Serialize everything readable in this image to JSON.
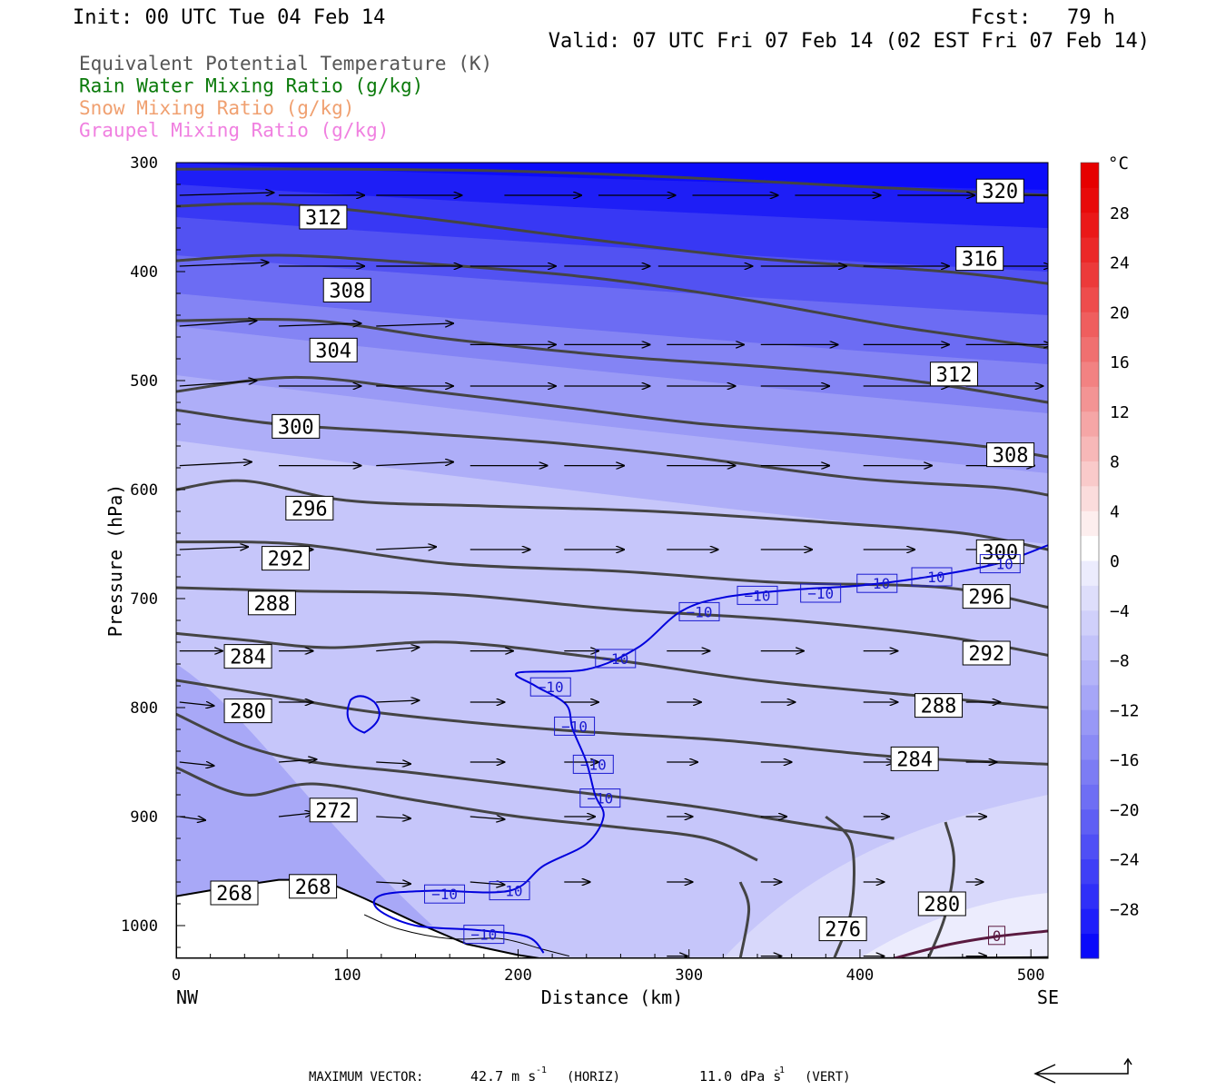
{
  "header": {
    "init": "Init: 00 UTC Tue 04 Feb 14",
    "fcst": "Fcst:   79 h",
    "valid": "Valid: 07 UTC Fri 07 Feb 14 (02 EST Fri 07 Feb 14)"
  },
  "fields": [
    {
      "label": "Equivalent Potential Temperature (K)",
      "color": "#555555"
    },
    {
      "label": "Rain Water Mixing Ratio (g/kg)",
      "color": "#0a7a0a"
    },
    {
      "label": "Snow Mixing Ratio (g/kg)",
      "color": "#f0a070"
    },
    {
      "label": "Graupel Mixing Ratio (g/kg)",
      "color": "#f080e0"
    }
  ],
  "chart_data": {
    "type": "heatmap",
    "xlabel": "Distance (km)",
    "ylabel": "Pressure (hPa)",
    "x_ticks": [
      0,
      100,
      200,
      300,
      400,
      500
    ],
    "x_range": [
      0,
      510
    ],
    "y_ticks": [
      300,
      400,
      500,
      600,
      700,
      800,
      900,
      1000
    ],
    "y_range": [
      300,
      1030
    ],
    "end_labels": {
      "left": "NW",
      "right": "SE"
    },
    "colorbar": {
      "unit": "°C",
      "ticks": [
        28,
        24,
        20,
        16,
        12,
        8,
        4,
        0,
        -4,
        -8,
        -12,
        -16,
        -20,
        -24,
        -28
      ],
      "tick_labels": [
        "28",
        "24",
        "20",
        "16",
        "12",
        "8",
        "4",
        "0",
        "−4",
        "−8",
        "−12",
        "−16",
        "−20",
        "−24",
        "−28"
      ],
      "levels": [
        -32,
        -30,
        -28,
        -26,
        -24,
        -22,
        -20,
        -18,
        -16,
        -14,
        -12,
        -10,
        -8,
        -6,
        -4,
        -2,
        0,
        2,
        4,
        6,
        8,
        10,
        12,
        14,
        16,
        18,
        20,
        22,
        24,
        26,
        28,
        30,
        32
      ],
      "colors": [
        "#0a0afa",
        "#1e1efa",
        "#2f2ff8",
        "#3f3ff6",
        "#4f4ff5",
        "#5f5ff4",
        "#6e6ef4",
        "#7c7cf4",
        "#8a8af5",
        "#9898f6",
        "#a6a6f7",
        "#b4b4f8",
        "#c2c2f9",
        "#d0d0fa",
        "#dedefb",
        "#ececfd",
        "#ffffff",
        "#fdeeee",
        "#fbdcdc",
        "#f9caca",
        "#f7b8b8",
        "#f5a6a6",
        "#f39494",
        "#f28282",
        "#f07070",
        "#ef5e5e",
        "#ee4c4c",
        "#ec3a3a",
        "#eb2828",
        "#ea1818",
        "#e80a0a",
        "#e60000"
      ]
    },
    "theta_e_labels": [
      {
        "text": "320",
        "x": 482,
        "p": 326
      },
      {
        "text": "312",
        "x": 86,
        "p": 350
      },
      {
        "text": "316",
        "x": 470,
        "p": 388
      },
      {
        "text": "308",
        "x": 100,
        "p": 417
      },
      {
        "text": "304",
        "x": 92,
        "p": 472
      },
      {
        "text": "312",
        "x": 455,
        "p": 494
      },
      {
        "text": "300",
        "x": 70,
        "p": 542
      },
      {
        "text": "308",
        "x": 488,
        "p": 568
      },
      {
        "text": "296",
        "x": 78,
        "p": 617
      },
      {
        "text": "300",
        "x": 482,
        "p": 657
      },
      {
        "text": "292",
        "x": 64,
        "p": 663
      },
      {
        "text": "296",
        "x": 474,
        "p": 698
      },
      {
        "text": "288",
        "x": 56,
        "p": 704
      },
      {
        "text": "284",
        "x": 42,
        "p": 753
      },
      {
        "text": "292",
        "x": 474,
        "p": 750
      },
      {
        "text": "288",
        "x": 446,
        "p": 798
      },
      {
        "text": "280",
        "x": 42,
        "p": 803
      },
      {
        "text": "284",
        "x": 432,
        "p": 847
      },
      {
        "text": "272",
        "x": 92,
        "p": 894
      },
      {
        "text": "268",
        "x": 34,
        "p": 970
      },
      {
        "text": "268",
        "x": 80,
        "p": 964
      },
      {
        "text": "276",
        "x": 390,
        "p": 1003
      },
      {
        "text": "280",
        "x": 448,
        "p": 980
      }
    ],
    "temp_labels": [
      {
        "text": "−10",
        "x": 482,
        "p": 668
      },
      {
        "text": "−10",
        "x": 442,
        "p": 680
      },
      {
        "text": "−10",
        "x": 410,
        "p": 686
      },
      {
        "text": "−10",
        "x": 377,
        "p": 695
      },
      {
        "text": "−10",
        "x": 340,
        "p": 697
      },
      {
        "text": "−10",
        "x": 306,
        "p": 712
      },
      {
        "text": "−10",
        "x": 257,
        "p": 755
      },
      {
        "text": "−10",
        "x": 219,
        "p": 781
      },
      {
        "text": "−10",
        "x": 233,
        "p": 817
      },
      {
        "text": "−10",
        "x": 244,
        "p": 852
      },
      {
        "text": "−10",
        "x": 248,
        "p": 883
      },
      {
        "text": "−10",
        "x": 195,
        "p": 968
      },
      {
        "text": "−10",
        "x": 157,
        "p": 971
      },
      {
        "text": "−10",
        "x": 180,
        "p": 1008
      },
      {
        "text": "0",
        "x": 480,
        "p": 1009
      }
    ],
    "vector_caption": {
      "prefix": "MAXIMUM VECTOR:",
      "horiz_value": "42.7 m s",
      "horiz_unit": "(HORIZ)",
      "vert_value": "11.0 dPa s",
      "vert_unit": "(VERT)",
      "exponent": "-1"
    }
  }
}
